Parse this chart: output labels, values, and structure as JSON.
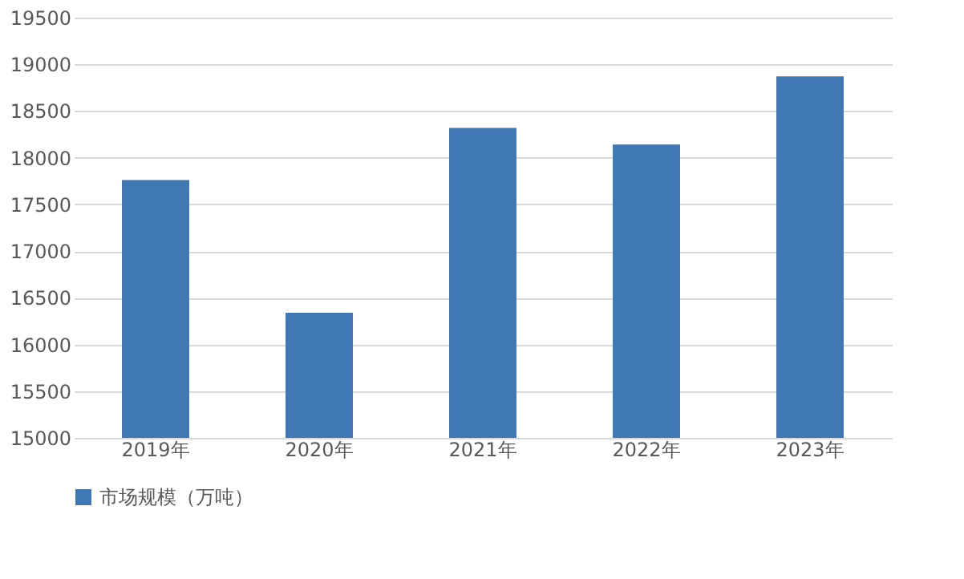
{
  "chart_data": {
    "type": "bar",
    "categories": [
      "2019年",
      "2020年",
      "2021年",
      "2022年",
      "2023年"
    ],
    "series": [
      {
        "name": "市场规模（万吨）",
        "color": "#3f78b5",
        "values": [
          17760,
          16340,
          18320,
          18140,
          18870
        ]
      }
    ],
    "ylim": [
      15000,
      19500
    ],
    "yticks": [
      15000,
      15500,
      16000,
      16500,
      17000,
      17500,
      18000,
      18500,
      19000,
      19500
    ],
    "grid": "y",
    "legend": "bottom"
  }
}
